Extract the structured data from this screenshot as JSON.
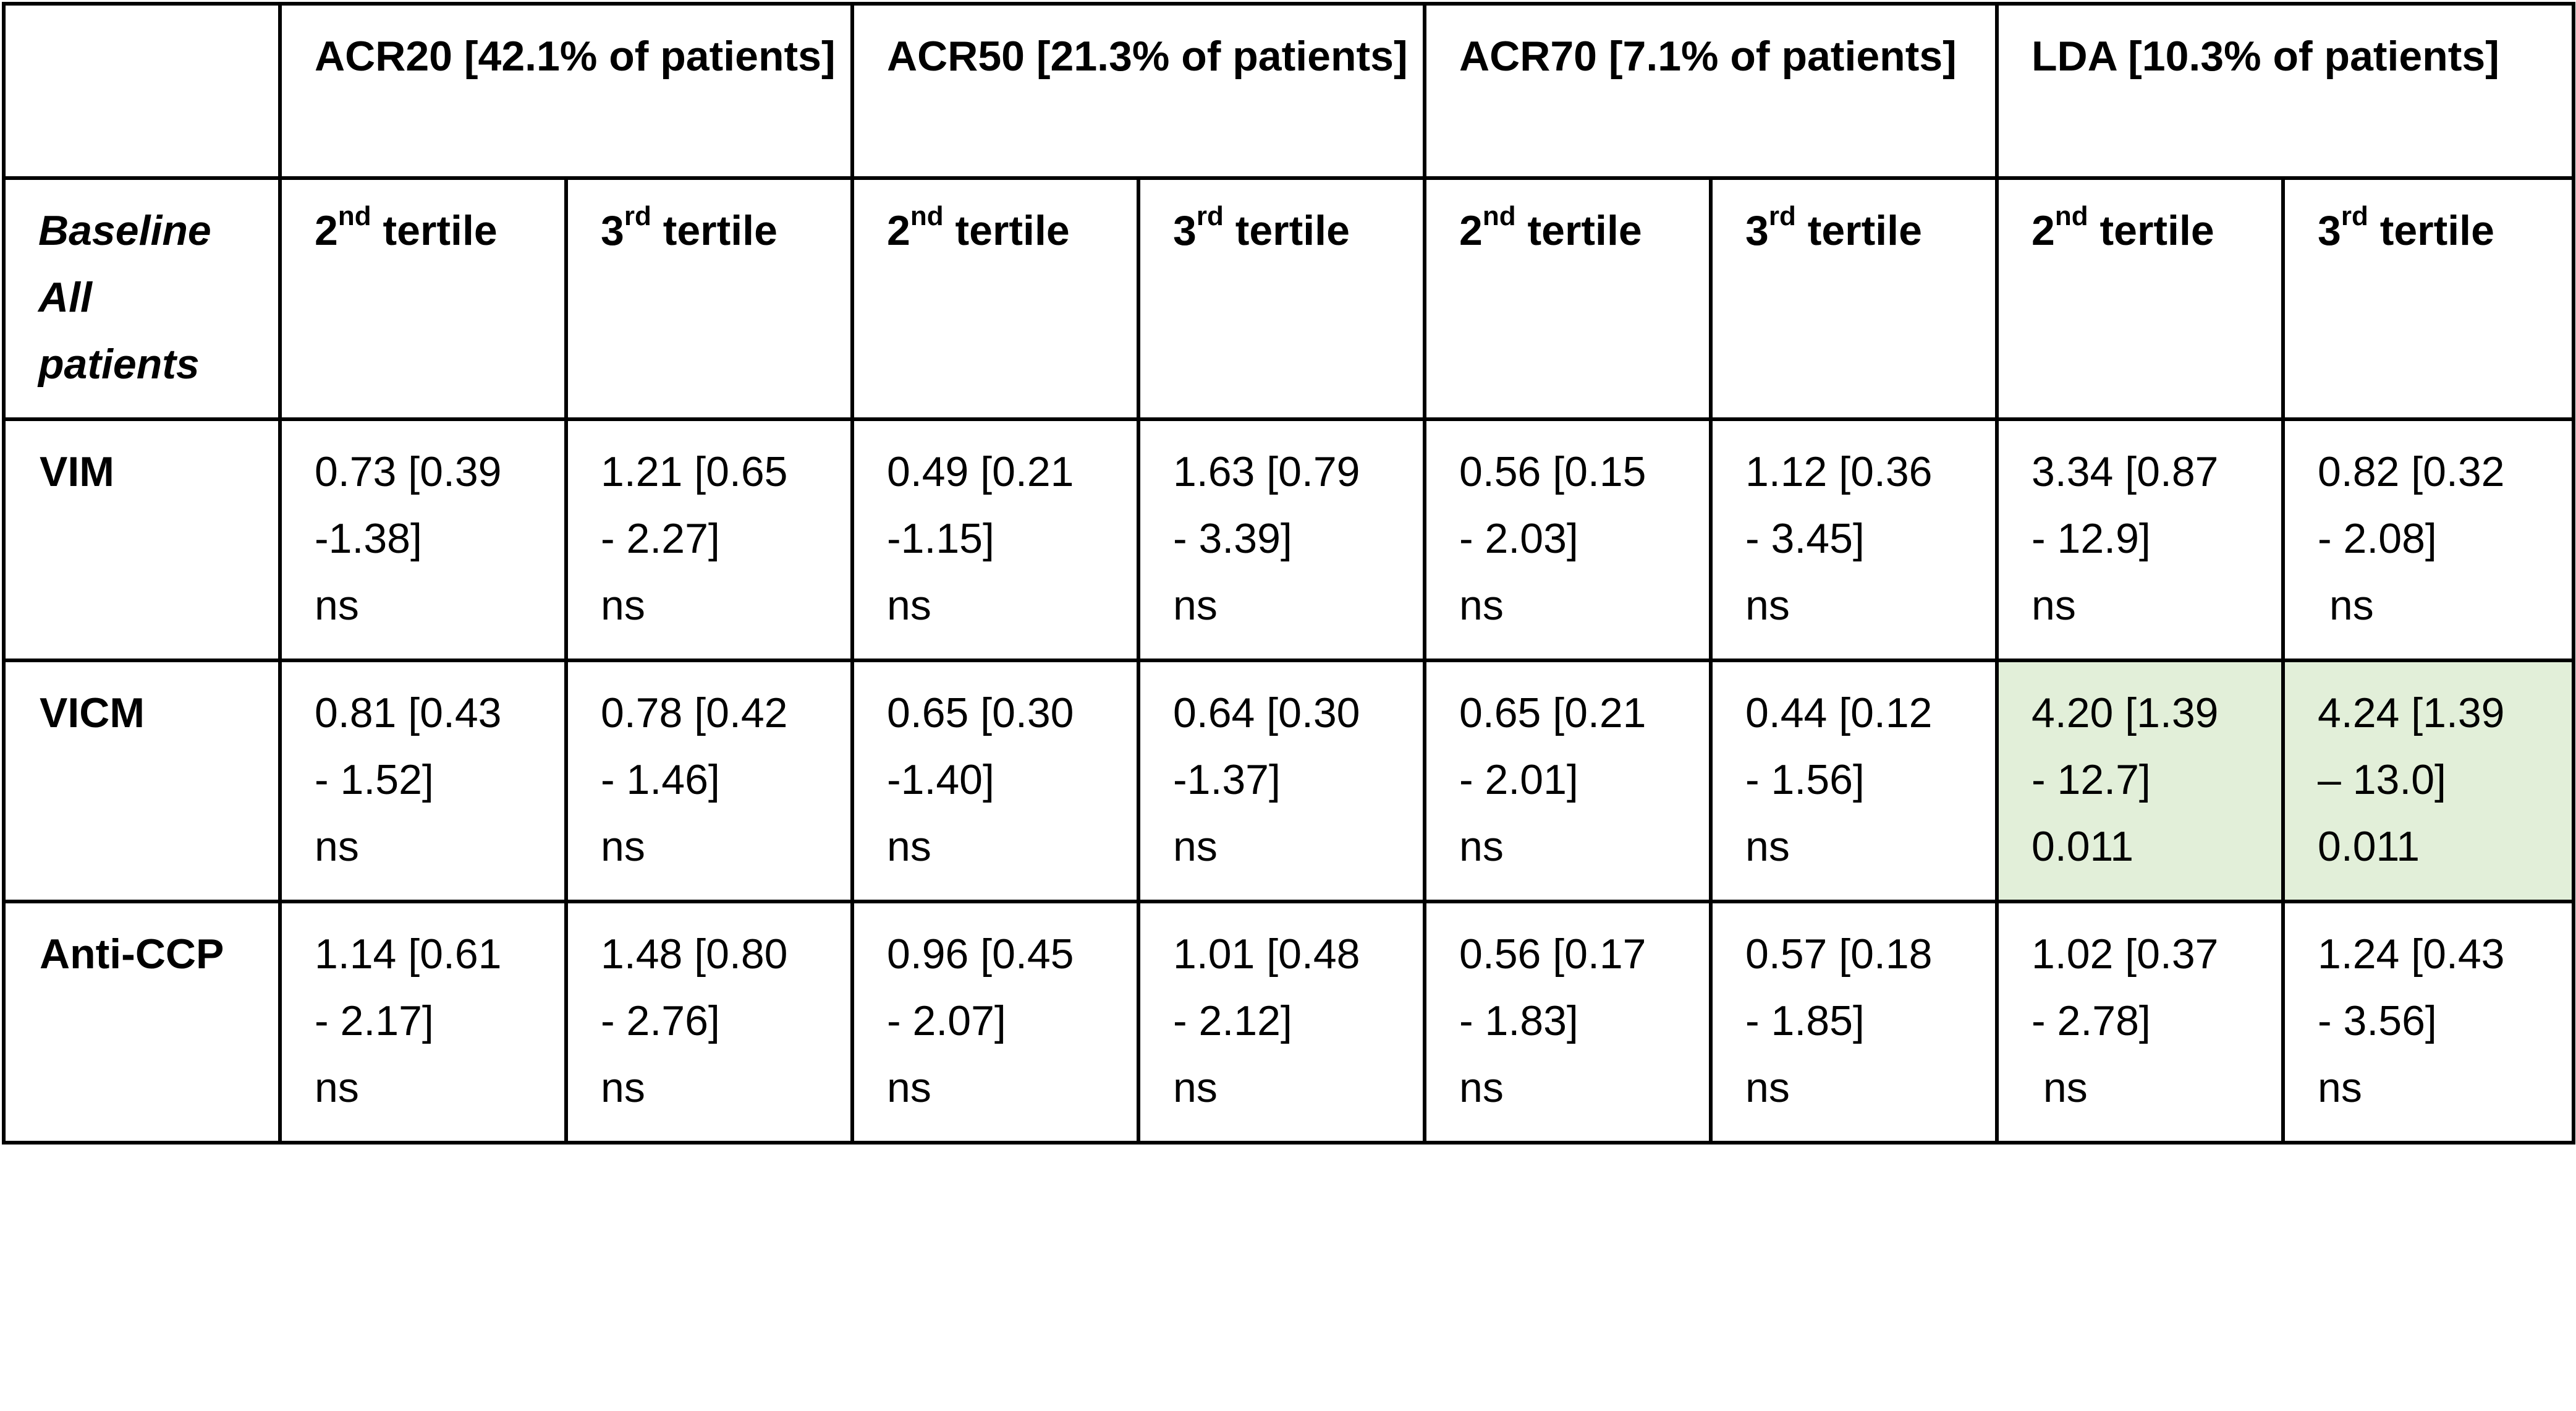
{
  "table": {
    "header_groups": [
      {
        "label": "ACR20 [42.1% of patients]"
      },
      {
        "label": "ACR50 [21.3% of patients]"
      },
      {
        "label": "ACR70 [7.1% of patients]"
      },
      {
        "label": "LDA [10.3% of patients]"
      }
    ],
    "corner_label": "",
    "subheader_label_lines": [
      "Baseline",
      "All",
      "patients"
    ],
    "tertiles": {
      "second": {
        "num": "2",
        "sup": "nd",
        "word": " tertile"
      },
      "third": {
        "num": "3",
        "sup": "rd",
        "word": " tertile"
      }
    },
    "rows": [
      {
        "label": "VIM",
        "cells": [
          {
            "lines": [
              "0.73 [0.39",
              "-1.38]",
              "ns"
            ]
          },
          {
            "lines": [
              "1.21 [0.65",
              "- 2.27]",
              "ns"
            ]
          },
          {
            "lines": [
              "0.49 [0.21",
              "-1.15]",
              "ns"
            ]
          },
          {
            "lines": [
              "1.63 [0.79",
              "- 3.39]",
              "ns"
            ]
          },
          {
            "lines": [
              "0.56 [0.15",
              "- 2.03]",
              "ns"
            ]
          },
          {
            "lines": [
              "1.12 [0.36",
              "- 3.45]",
              "ns"
            ]
          },
          {
            "lines": [
              "3.34 [0.87",
              "- 12.9]",
              "ns"
            ]
          },
          {
            "lines": [
              "0.82 [0.32",
              "- 2.08]",
              " ns"
            ]
          }
        ]
      },
      {
        "label": "VICM",
        "cells": [
          {
            "lines": [
              "0.81 [0.43",
              "- 1.52]",
              "ns"
            ]
          },
          {
            "lines": [
              "0.78 [0.42",
              "- 1.46]",
              "ns"
            ]
          },
          {
            "lines": [
              "0.65 [0.30",
              "-1.40]",
              "ns"
            ]
          },
          {
            "lines": [
              "0.64 [0.30",
              "-1.37]",
              "ns"
            ]
          },
          {
            "lines": [
              "0.65 [0.21",
              "- 2.01]",
              "ns"
            ]
          },
          {
            "lines": [
              "0.44 [0.12",
              "- 1.56]",
              "ns"
            ]
          },
          {
            "lines": [
              "4.20 [1.39",
              "- 12.7]",
              "0.011"
            ],
            "highlight": true
          },
          {
            "lines": [
              "4.24 [1.39",
              "– 13.0]",
              "0.011"
            ],
            "highlight": true
          }
        ]
      },
      {
        "label": "Anti-CCP",
        "cells": [
          {
            "lines": [
              "1.14 [0.61",
              "- 2.17]",
              "ns"
            ]
          },
          {
            "lines": [
              "1.48 [0.80",
              "- 2.76]",
              "ns"
            ]
          },
          {
            "lines": [
              "0.96 [0.45",
              "- 2.07]",
              "ns"
            ]
          },
          {
            "lines": [
              "1.01 [0.48",
              "- 2.12]",
              "ns"
            ]
          },
          {
            "lines": [
              "0.56 [0.17",
              "- 1.83]",
              "ns"
            ]
          },
          {
            "lines": [
              "0.57 [0.18",
              "- 1.85]",
              "ns"
            ]
          },
          {
            "lines": [
              "1.02 [0.37",
              "- 2.78]",
              " ns"
            ]
          },
          {
            "lines": [
              "1.24 [0.43",
              "- 3.56]",
              "ns"
            ]
          }
        ]
      }
    ],
    "highlight_color": "#e2efd9",
    "border_color": "#000000"
  }
}
